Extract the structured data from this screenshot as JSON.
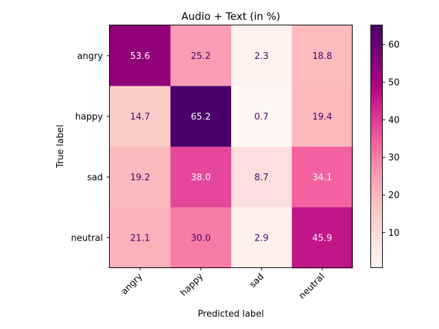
{
  "chart_data": {
    "type": "heatmap",
    "title": "Audio + Text (in %)",
    "xlabel": "Predicted label",
    "ylabel": "True label",
    "x_categories": [
      "angry",
      "happy",
      "sad",
      "neutral"
    ],
    "y_categories": [
      "angry",
      "happy",
      "sad",
      "neutral"
    ],
    "values": [
      [
        53.6,
        25.2,
        2.3,
        18.8
      ],
      [
        14.7,
        65.2,
        0.7,
        19.4
      ],
      [
        19.2,
        38.0,
        8.7,
        34.1
      ],
      [
        21.1,
        30.0,
        2.9,
        45.9
      ]
    ],
    "value_labels": [
      [
        "53.6",
        "25.2",
        "2.3",
        "18.8"
      ],
      [
        "14.7",
        "65.2",
        "0.7",
        "19.4"
      ],
      [
        "19.2",
        "38.0",
        "8.7",
        "34.1"
      ],
      [
        "21.1",
        "30.0",
        "2.9",
        "45.9"
      ]
    ],
    "colormap": "RdPu",
    "colorbar": {
      "range": [
        0.7,
        65.2
      ],
      "ticks": [
        10,
        20,
        30,
        40,
        50,
        60
      ],
      "tick_labels": [
        "10",
        "20",
        "30",
        "40",
        "50",
        "60"
      ]
    }
  }
}
